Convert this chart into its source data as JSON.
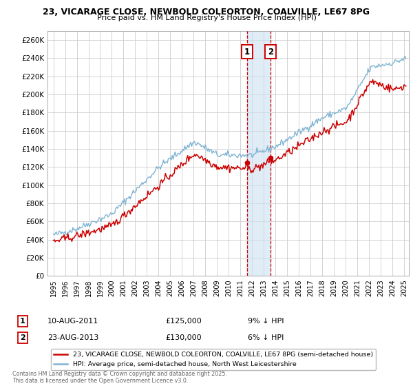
{
  "title_line1": "23, VICARAGE CLOSE, NEWBOLD COLEORTON, COALVILLE, LE67 8PG",
  "title_line2": "Price paid vs. HM Land Registry's House Price Index (HPI)",
  "ylim": [
    0,
    270000
  ],
  "yticks": [
    0,
    20000,
    40000,
    60000,
    80000,
    100000,
    120000,
    140000,
    160000,
    180000,
    200000,
    220000,
    240000,
    260000
  ],
  "ytick_labels": [
    "£0",
    "£20K",
    "£40K",
    "£60K",
    "£80K",
    "£100K",
    "£120K",
    "£140K",
    "£160K",
    "£180K",
    "£200K",
    "£220K",
    "£240K",
    "£260K"
  ],
  "legend_label_red": "23, VICARAGE CLOSE, NEWBOLD COLEORTON, COALVILLE, LE67 8PG (semi-detached house)",
  "legend_label_blue": "HPI: Average price, semi-detached house, North West Leicestershire",
  "red_color": "#cc0000",
  "blue_color": "#7fb3d3",
  "annotation_color": "#cc0000",
  "shade_color": "#cce0f0",
  "purchase1_label": "10-AUG-2011",
  "purchase1_price": 125000,
  "purchase1_price_str": "£125,000",
  "purchase1_note": "9% ↓ HPI",
  "purchase2_label": "23-AUG-2013",
  "purchase2_price": 130000,
  "purchase2_price_str": "£130,000",
  "purchase2_note": "6% ↓ HPI",
  "footer": "Contains HM Land Registry data © Crown copyright and database right 2025.\nThis data is licensed under the Open Government Licence v3.0.",
  "bg_color": "#ffffff",
  "grid_color": "#cccccc"
}
